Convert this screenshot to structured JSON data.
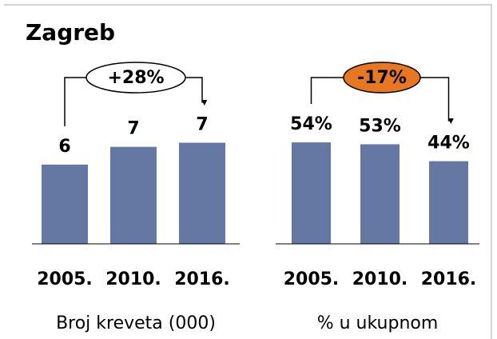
{
  "title": "Zagreb",
  "chart_data": [
    {
      "type": "bar",
      "categories": [
        "2005.",
        "2010.",
        "2016."
      ],
      "values": [
        5.8,
        7.1,
        7.4
      ],
      "value_labels": [
        "6",
        "7",
        "7"
      ],
      "color": "#6577a3",
      "ylim": [
        0,
        11
      ],
      "xlabel": "Broj kreveta (000)",
      "annotation": "+28%"
    },
    {
      "type": "bar",
      "categories": [
        "2005.",
        "2010.",
        "2016."
      ],
      "values": [
        54,
        53,
        44
      ],
      "value_labels": [
        "54%",
        "53%",
        "44%"
      ],
      "color": "#6577a3",
      "ylim": [
        0,
        80
      ],
      "xlabel": "% u ukupnom",
      "annotation": "-17%"
    }
  ]
}
